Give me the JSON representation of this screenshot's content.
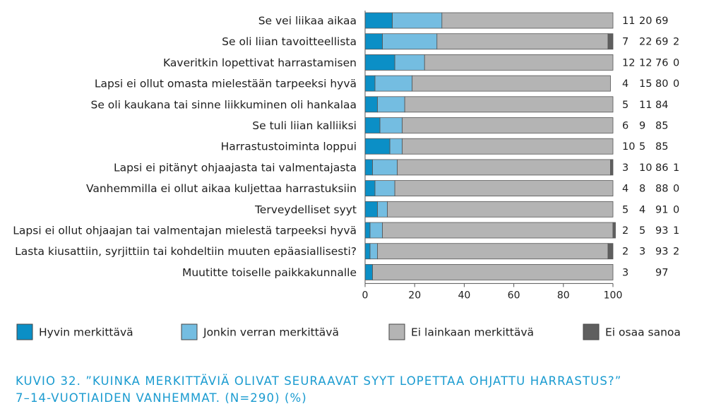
{
  "chart_data": {
    "type": "bar",
    "orientation": "horizontal",
    "stacked": true,
    "categories": [
      "Se vei liikaa aikaa",
      "Se oli liian tavoitteellista",
      "Kaveritkin lopettivat harrastamisen",
      "Lapsi ei ollut omasta mielestään tarpeeksi hyvä",
      "Se oli kaukana tai sinne liikkuminen oli hankalaa",
      "Se tuli liian kalliiksi",
      "Harrastustoiminta loppui",
      "Lapsi ei pitänyt ohjaajasta tai valmentajasta",
      "Vanhemmilla ei ollut aikaa kuljettaa harrastuksiin",
      "Terveydelliset syyt",
      "Lapsi ei ollut ohjaajan tai valmentajan mielestä tarpeeksi hyvä",
      "Lasta kiusattiin, syrjittiin tai kohdeltiin muuten epäasiallisesti?",
      "Muutitte toiselle paikkakunnalle"
    ],
    "series": [
      {
        "name": "Hyvin merkittävä",
        "color": "#0b8fc6",
        "values": [
          11,
          7,
          12,
          4,
          5,
          6,
          10,
          3,
          4,
          5,
          2,
          2,
          3
        ]
      },
      {
        "name": "Jonkin verran merkittävä",
        "color": "#74bde1",
        "values": [
          20,
          22,
          12,
          15,
          11,
          9,
          5,
          10,
          8,
          4,
          5,
          3,
          null
        ]
      },
      {
        "name": "Ei lainkaan merkittävä",
        "color": "#b4b4b4",
        "values": [
          69,
          69,
          76,
          80,
          84,
          85,
          85,
          86,
          88,
          91,
          93,
          93,
          97
        ]
      },
      {
        "name": "Ei osaa sanoa",
        "color": "#5f5f5f",
        "values": [
          null,
          2,
          0,
          0,
          null,
          null,
          null,
          1,
          0,
          0,
          1,
          2,
          null
        ]
      }
    ],
    "xlim": [
      0,
      100
    ],
    "xticks": [
      0,
      20,
      40,
      60,
      80,
      100
    ],
    "legend_position": "bottom",
    "grid": false
  },
  "caption": {
    "line1": "KUVIO 32. ”KUINKA MERKITTÄVIÄ OLIVAT SEURAAVAT SYYT LOPETTAA OHJATTU HARRASTUS?”",
    "line2": "7–14-VUOTIAIDEN VANHEMMAT. (N=290) (%)"
  }
}
